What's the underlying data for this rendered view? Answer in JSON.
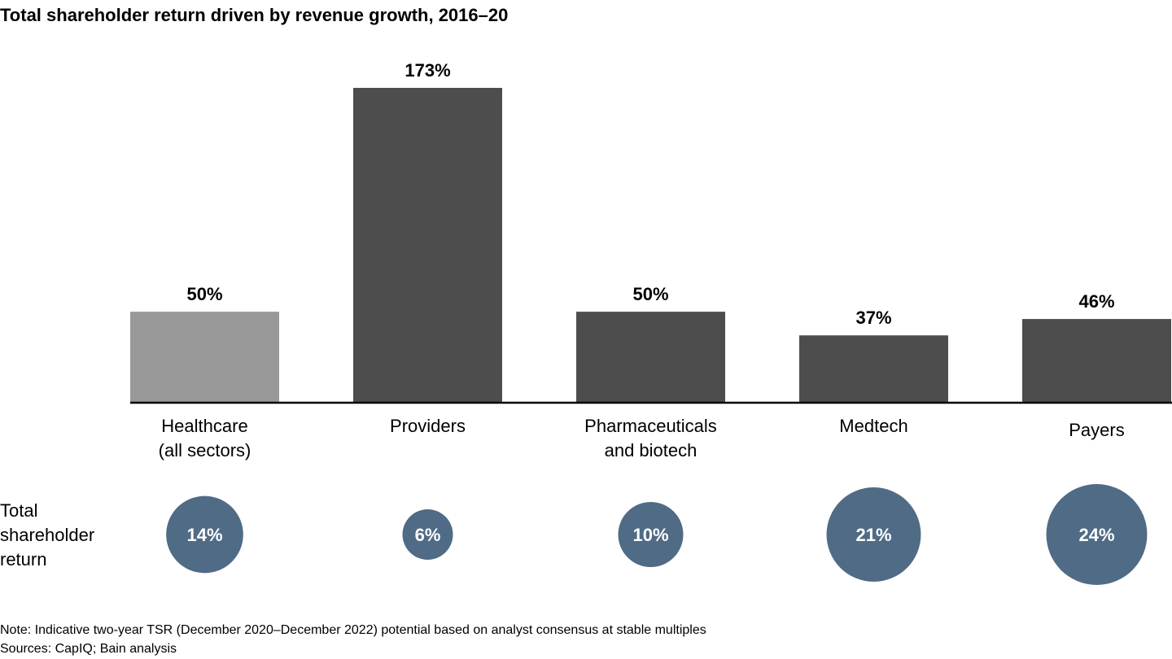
{
  "chart_data": {
    "type": "bar",
    "title": "Total shareholder return driven by revenue growth, 2016–20",
    "categories": [
      [
        "Healthcare",
        "(all sectors)"
      ],
      [
        "Providers"
      ],
      [
        "Pharmaceuticals",
        "and biotech"
      ],
      [
        "Medtech"
      ],
      [
        "Payers"
      ]
    ],
    "values": [
      50,
      173,
      50,
      37,
      46
    ],
    "value_labels": [
      "50%",
      "173%",
      "50%",
      "37%",
      "46%"
    ],
    "bar_colors": [
      "#999999",
      "#4d4d4d",
      "#4d4d4d",
      "#4d4d4d",
      "#4d4d4d"
    ],
    "grid": false,
    "tsr": {
      "label": [
        "Total",
        "shareholder",
        "return"
      ],
      "values": [
        14,
        6,
        10,
        21,
        24
      ],
      "value_labels": [
        "14%",
        "6%",
        "10%",
        "21%",
        "24%"
      ],
      "color": "#506b85"
    }
  },
  "footer": {
    "note": "Note: Indicative two-year TSR (December 2020–December 2022) potential based on analyst consensus at stable multiples",
    "sources": "Sources: CapIQ; Bain analysis"
  }
}
